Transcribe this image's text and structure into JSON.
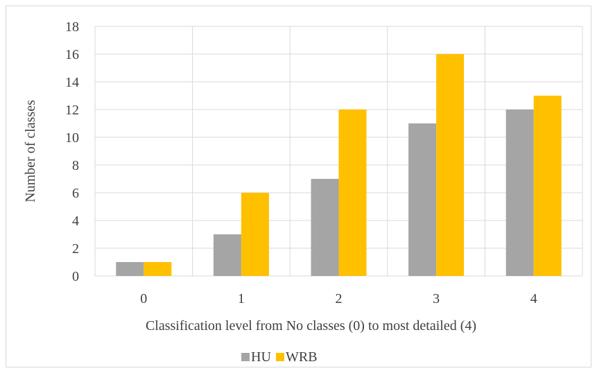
{
  "chart_data": {
    "type": "bar",
    "categories": [
      "0",
      "1",
      "2",
      "3",
      "4"
    ],
    "series": [
      {
        "name": "HU",
        "color": "#a5a5a5",
        "values": [
          1,
          3,
          7,
          11,
          12
        ]
      },
      {
        "name": "WRB",
        "color": "#ffc000",
        "values": [
          1,
          6,
          12,
          16,
          13
        ]
      }
    ],
    "xlabel": "Classification level from No classes (0) to most detailed (4)",
    "ylabel": "Number of classes",
    "ylim": [
      0,
      18
    ],
    "yticks": [
      0,
      2,
      4,
      6,
      8,
      10,
      12,
      14,
      16,
      18
    ],
    "grid": true,
    "legend_position": "bottom"
  }
}
